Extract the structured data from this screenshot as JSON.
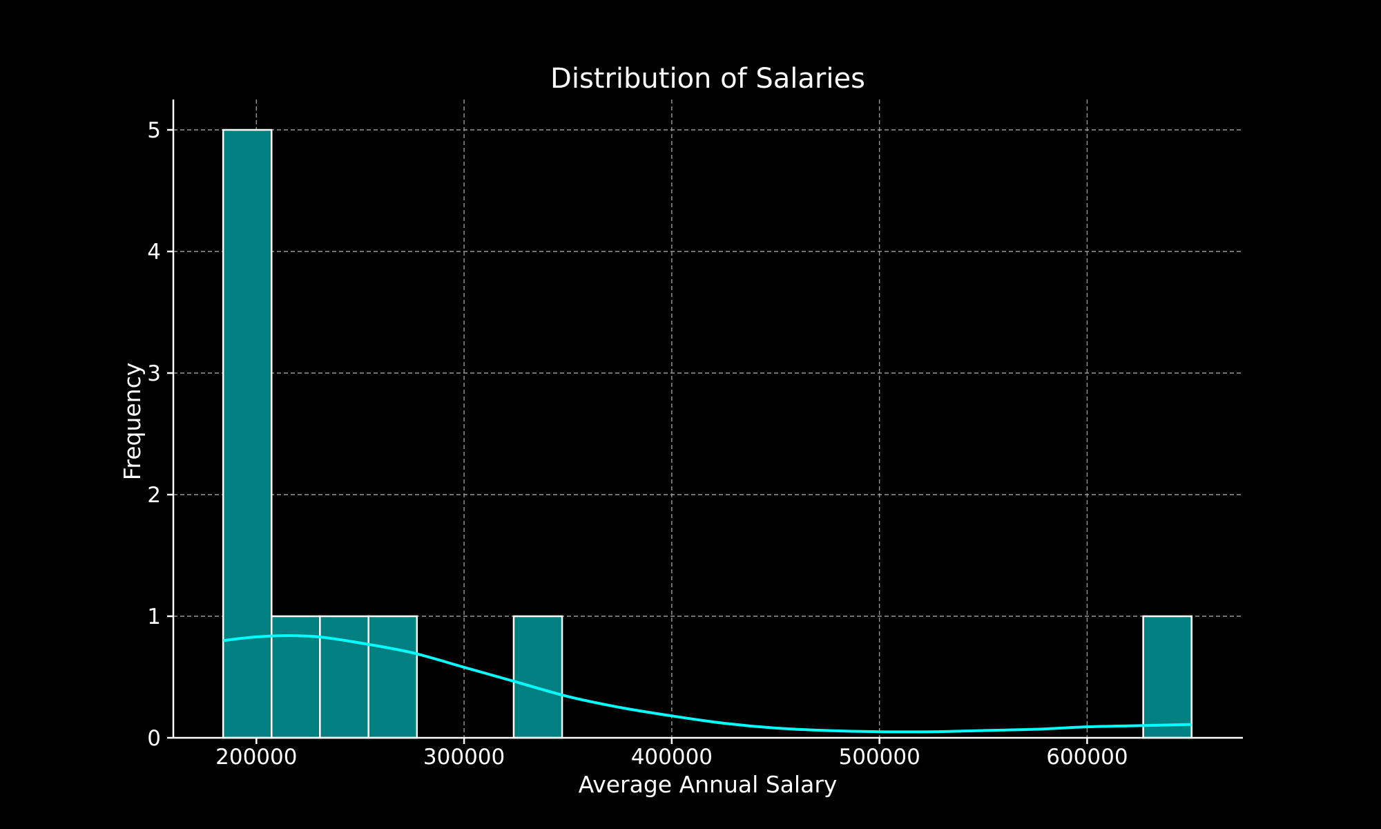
{
  "chart_data": {
    "type": "bar",
    "title": "Distribution of Salaries",
    "xlabel": "Average Annual Salary",
    "ylabel": "Frequency",
    "xlim": [
      160000,
      675000
    ],
    "ylim": [
      0,
      5.25
    ],
    "xticks": [
      200000,
      300000,
      400000,
      500000,
      600000
    ],
    "yticks": [
      0,
      1,
      2,
      3,
      4,
      5
    ],
    "grid": true,
    "bins": [
      {
        "start": 184000,
        "end": 207300,
        "count": 5
      },
      {
        "start": 207300,
        "end": 230600,
        "count": 1
      },
      {
        "start": 230600,
        "end": 254000,
        "count": 1
      },
      {
        "start": 254000,
        "end": 277300,
        "count": 1
      },
      {
        "start": 277300,
        "end": 300600,
        "count": 0
      },
      {
        "start": 300600,
        "end": 323900,
        "count": 0
      },
      {
        "start": 323900,
        "end": 347200,
        "count": 1
      },
      {
        "start": 347200,
        "end": 370500,
        "count": 0
      },
      {
        "start": 370500,
        "end": 393900,
        "count": 0
      },
      {
        "start": 393900,
        "end": 417200,
        "count": 0
      },
      {
        "start": 417200,
        "end": 440500,
        "count": 0
      },
      {
        "start": 440500,
        "end": 463800,
        "count": 0
      },
      {
        "start": 463800,
        "end": 487100,
        "count": 0
      },
      {
        "start": 487100,
        "end": 510400,
        "count": 0
      },
      {
        "start": 510400,
        "end": 533800,
        "count": 0
      },
      {
        "start": 533800,
        "end": 557100,
        "count": 0
      },
      {
        "start": 557100,
        "end": 580400,
        "count": 0
      },
      {
        "start": 580400,
        "end": 603700,
        "count": 0
      },
      {
        "start": 603700,
        "end": 627000,
        "count": 0
      },
      {
        "start": 627000,
        "end": 650300,
        "count": 1
      }
    ],
    "kde": {
      "x": [
        184000,
        200000,
        215000,
        230000,
        250000,
        275000,
        300000,
        325000,
        350000,
        375000,
        400000,
        425000,
        450000,
        475000,
        500000,
        525000,
        550000,
        575000,
        600000,
        625000,
        650300
      ],
      "y": [
        0.8,
        0.83,
        0.84,
        0.83,
        0.78,
        0.7,
        0.58,
        0.46,
        0.34,
        0.25,
        0.18,
        0.12,
        0.08,
        0.06,
        0.05,
        0.05,
        0.06,
        0.07,
        0.09,
        0.1,
        0.11
      ]
    },
    "colors": {
      "bar_fill": "#008080",
      "bar_edge": "#ffffff",
      "kde_line": "#00ffff",
      "background": "#000000"
    }
  }
}
